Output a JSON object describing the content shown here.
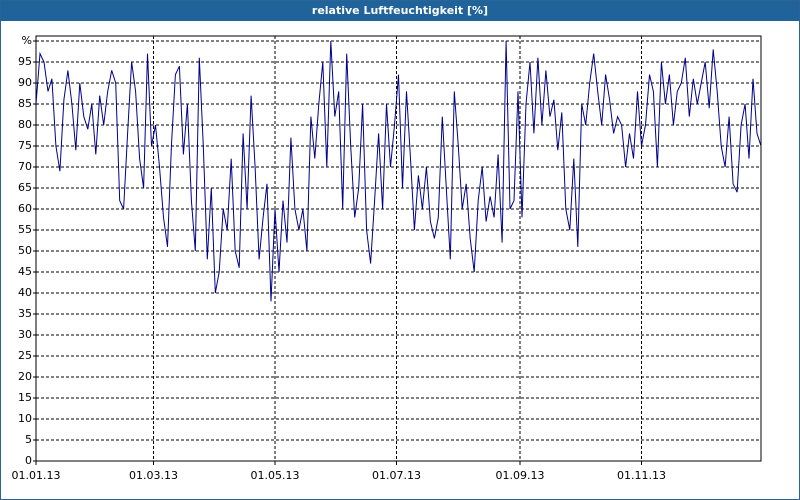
{
  "chart_data": {
    "type": "line",
    "title": "relative Luftfeuchtigkeit [%]",
    "x": [
      0,
      2,
      4,
      6,
      8,
      10,
      12,
      14,
      16,
      18,
      20,
      22,
      24,
      26,
      28,
      30,
      32,
      34,
      36,
      38,
      40,
      42,
      44,
      46,
      48,
      50,
      52,
      54,
      56,
      58,
      60,
      62,
      64,
      66,
      68,
      70,
      72,
      74,
      76,
      78,
      80,
      82,
      84,
      86,
      88,
      90,
      92,
      94,
      96,
      98,
      100,
      102,
      104,
      106,
      108,
      110,
      112,
      114,
      116,
      118,
      120,
      122,
      124,
      126,
      128,
      130,
      132,
      134,
      136,
      138,
      140,
      142,
      144,
      146,
      148,
      150,
      152,
      154,
      156,
      158,
      160,
      162,
      164,
      166,
      168,
      170,
      172,
      174,
      176,
      178,
      180,
      182,
      184,
      186,
      188,
      190,
      192,
      194,
      196,
      198,
      200,
      202,
      204,
      206,
      208,
      210,
      212,
      214,
      216,
      218,
      220,
      222,
      224,
      226,
      228,
      230,
      232,
      234,
      236,
      238,
      240,
      242,
      244,
      246,
      248,
      250,
      252,
      254,
      256,
      258,
      260,
      262,
      264,
      266,
      268,
      270,
      272,
      274,
      276,
      278,
      280,
      282,
      284,
      286,
      288,
      290,
      292,
      294,
      296,
      298,
      300,
      302,
      304,
      306,
      308,
      310,
      312,
      314,
      316,
      318,
      320,
      322,
      324,
      326,
      328,
      330,
      332,
      334,
      336,
      338,
      340,
      342,
      344,
      346,
      348,
      350,
      352,
      354,
      356,
      358,
      360,
      362,
      364
    ],
    "values": [
      85,
      97,
      95,
      88,
      91,
      75,
      69,
      86,
      93,
      85,
      74,
      90,
      82,
      79,
      85,
      73,
      87,
      80,
      88,
      93,
      90,
      62,
      60,
      78,
      95,
      88,
      72,
      65,
      97,
      75,
      80,
      70,
      58,
      51,
      75,
      92,
      94,
      73,
      85,
      62,
      50,
      96,
      75,
      48,
      65,
      40,
      45,
      60,
      55,
      72,
      50,
      46,
      78,
      60,
      87,
      70,
      48,
      58,
      66,
      38,
      60,
      45,
      62,
      52,
      77,
      60,
      55,
      60,
      50,
      82,
      72,
      85,
      95,
      70,
      100,
      82,
      88,
      60,
      97,
      75,
      58,
      65,
      85,
      55,
      47,
      62,
      78,
      60,
      85,
      70,
      80,
      92,
      65,
      88,
      72,
      55,
      68,
      60,
      70,
      57,
      53,
      58,
      82,
      65,
      48,
      88,
      75,
      60,
      66,
      53,
      45,
      62,
      70,
      57,
      63,
      58,
      73,
      52,
      100,
      60,
      62,
      88,
      58,
      85,
      95,
      78,
      96,
      80,
      93,
      82,
      86,
      74,
      83,
      60,
      55,
      72,
      51,
      85,
      80,
      90,
      97,
      88,
      80,
      92,
      86,
      78,
      82,
      80,
      70,
      78,
      72,
      88,
      75,
      80,
      92,
      88,
      70,
      95,
      85,
      92,
      80,
      88,
      90,
      96,
      82,
      91,
      85,
      90,
      95,
      84,
      98,
      88,
      75,
      70,
      82,
      66,
      64,
      80,
      85,
      72,
      91,
      78,
      75
    ],
    "color": "#00008b",
    "xlim": [
      0,
      364
    ],
    "xticks": [
      {
        "value": 0,
        "label": "01.01.13"
      },
      {
        "value": 59,
        "label": "01.03.13"
      },
      {
        "value": 120,
        "label": "01.05.13"
      },
      {
        "value": 181,
        "label": "01.07.13"
      },
      {
        "value": 243,
        "label": "01.09.13"
      },
      {
        "value": 304,
        "label": "01.11.13"
      }
    ],
    "ylim": [
      0,
      100
    ],
    "yticks": [
      0,
      5,
      10,
      15,
      20,
      25,
      30,
      35,
      40,
      45,
      50,
      55,
      60,
      65,
      70,
      75,
      80,
      85,
      90,
      95,
      {
        "value": 100,
        "label": "%"
      }
    ],
    "grid": true
  }
}
